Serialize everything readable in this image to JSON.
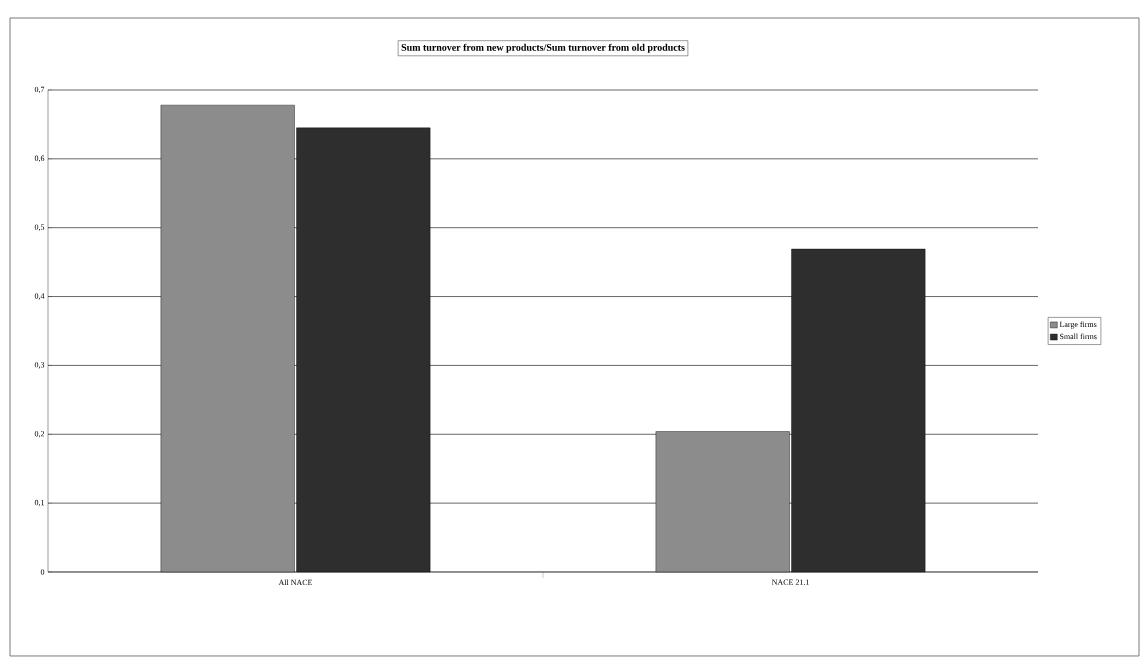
{
  "chart_data": {
    "type": "bar",
    "title": "Sum turnover from new products/Sum turnover from old products",
    "categories": [
      "All NACE",
      "NACE 21.1"
    ],
    "series": [
      {
        "name": "Large firms",
        "color": "#8c8c8c",
        "values": [
          0.678,
          0.204
        ]
      },
      {
        "name": "Small firms",
        "color": "#2e2e2e",
        "values": [
          0.645,
          0.469
        ]
      }
    ],
    "ylim": [
      0,
      0.7
    ],
    "yticks": [
      0,
      {
        "value": 0.1,
        "label": "0,1"
      },
      {
        "value": 0.2,
        "label": "0,2"
      },
      {
        "value": 0.3,
        "label": "0,3"
      },
      {
        "value": 0.4,
        "label": "0,4"
      },
      {
        "value": 0.5,
        "label": "0,5"
      },
      {
        "value": 0.6,
        "label": "0,6"
      },
      {
        "value": 0.7,
        "label": "0,7"
      }
    ],
    "grid": "y",
    "legend": "right"
  }
}
